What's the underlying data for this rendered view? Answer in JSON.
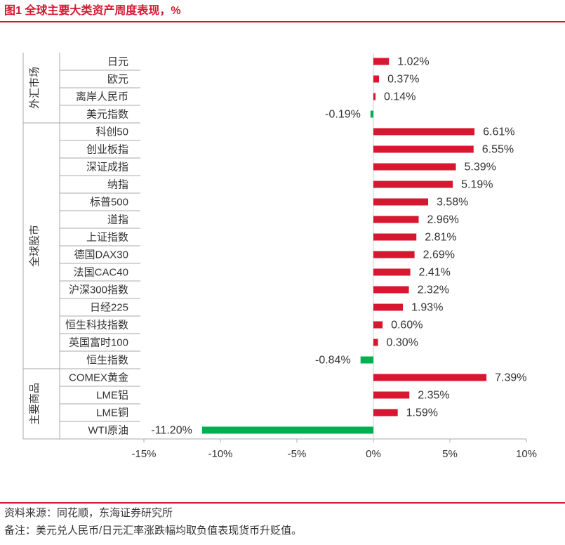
{
  "chart_data": {
    "type": "bar",
    "orientation": "horizontal",
    "title": "图1  全球主要大类资产周度表现，%",
    "categories": [
      "日元",
      "欧元",
      "离岸人民币",
      "美元指数",
      "科创50",
      "创业板指",
      "深证成指",
      "纳指",
      "标普500",
      "道指",
      "上证指数",
      "德国DAX30",
      "法国CAC40",
      "沪深300指数",
      "日经225",
      "恒生科技指数",
      "英国富时100",
      "恒生指数",
      "COMEX黄金",
      "LME铝",
      "LME铜",
      "WTI原油"
    ],
    "values": [
      1.02,
      0.37,
      0.14,
      -0.19,
      6.61,
      6.55,
      5.39,
      5.19,
      3.58,
      2.96,
      2.81,
      2.69,
      2.41,
      2.32,
      1.93,
      0.6,
      0.3,
      -0.84,
      7.39,
      2.35,
      1.59,
      -11.2
    ],
    "value_labels": [
      "1.02%",
      "0.37%",
      "0.14%",
      "-0.19%",
      "6.61%",
      "6.55%",
      "5.39%",
      "5.19%",
      "3.58%",
      "2.96%",
      "2.81%",
      "2.69%",
      "2.41%",
      "2.32%",
      "1.93%",
      "0.60%",
      "0.30%",
      "-0.84%",
      "7.39%",
      "2.35%",
      "1.59%",
      "-11.20%"
    ],
    "positive_color": "#d7172f",
    "negative_color": "#00b050",
    "groups": [
      {
        "name": "外汇市场",
        "count": 4
      },
      {
        "name": "全球股市",
        "count": 14
      },
      {
        "name": "主要商品",
        "count": 4
      }
    ],
    "xlim": [
      -15,
      10
    ],
    "xticks": [
      {
        "value": -15,
        "label": "-15%"
      },
      {
        "value": -10,
        "label": "-10%"
      },
      {
        "value": -5,
        "label": "-5%"
      },
      {
        "value": 0,
        "label": "0%"
      },
      {
        "value": 5,
        "label": "5%"
      },
      {
        "value": 10,
        "label": "10%"
      }
    ],
    "source": "资料来源：同花顺，东海证券研究所",
    "note": "备注：美元兑人民币/日元汇率涨跌幅均取负值表现货币升贬值。"
  }
}
